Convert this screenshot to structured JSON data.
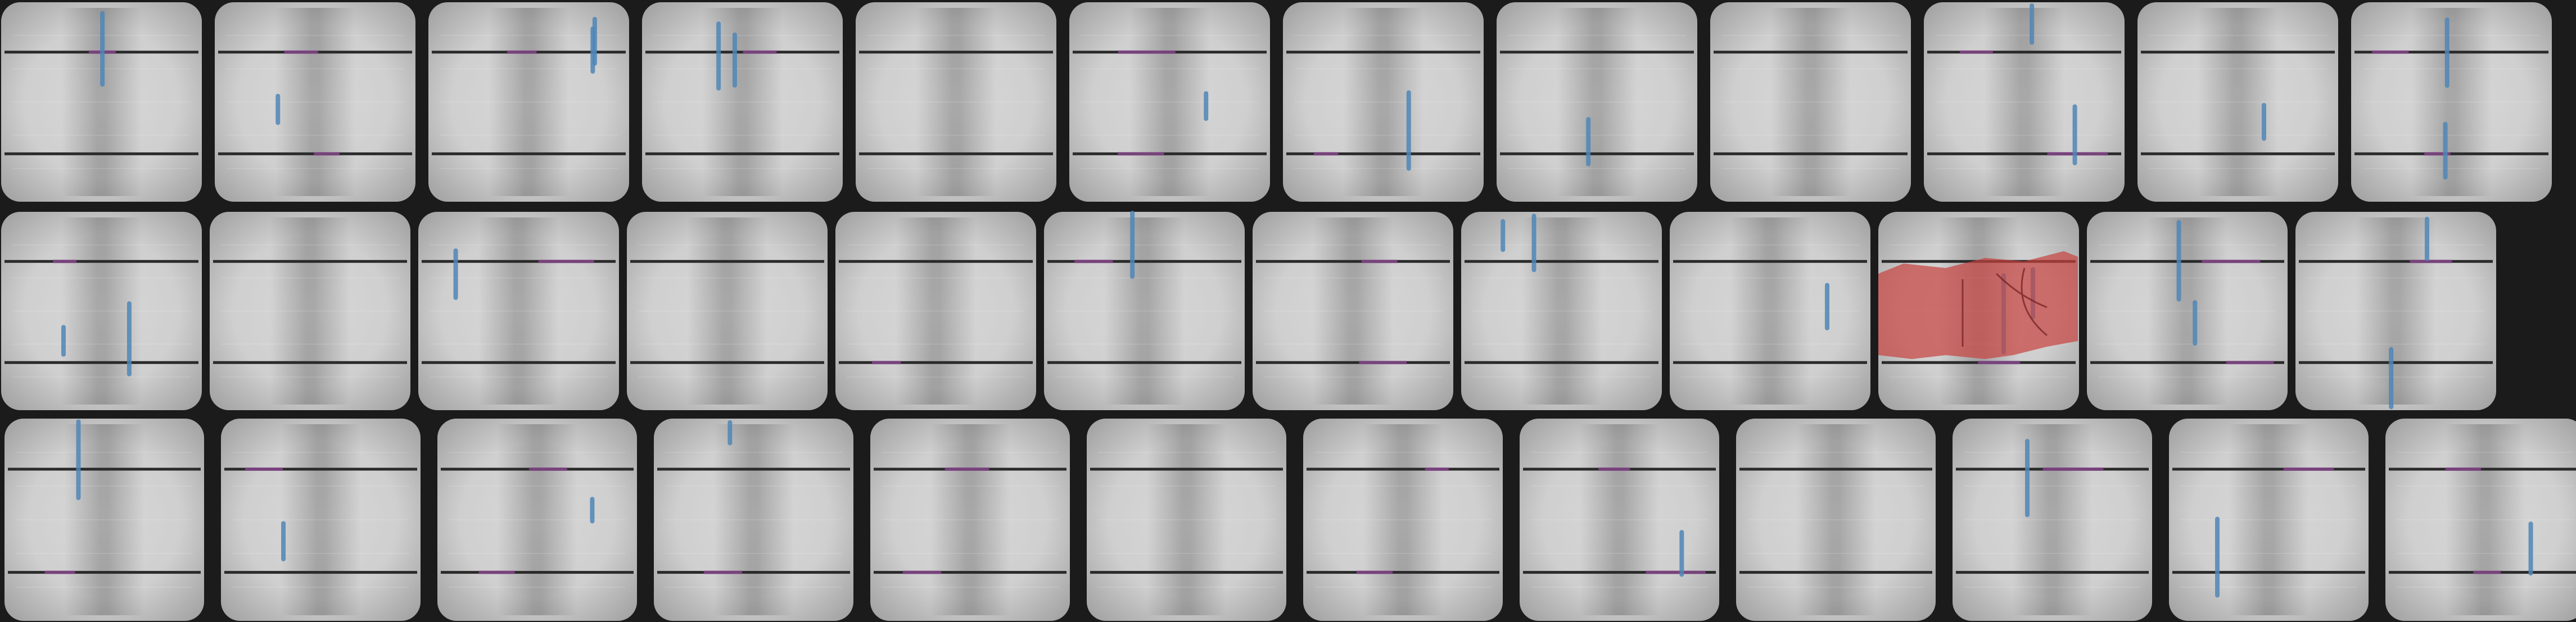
{
  "image": {
    "kind": "electroluminescence image of a solar panel",
    "background_color": "#1b1b1b",
    "cell_color_light": "#e6e6e6",
    "cell_color_mid": "#b9b9b9",
    "busbar_color": "#2a2a2a",
    "busbar_highlight_color": "#8a4a8e",
    "crack_color": "#4f86b6",
    "defect_color": "#c7413f"
  },
  "panel": {
    "rows": 3,
    "row_cell_counts": [
      12,
      12,
      12
    ],
    "busbars_per_cell": 2,
    "annotated_defect": {
      "row": 2,
      "column": 10,
      "type": "red filled region"
    }
  }
}
